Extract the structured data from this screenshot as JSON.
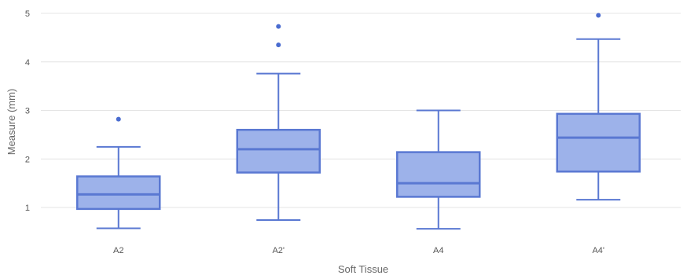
{
  "chart_data": {
    "type": "boxplot",
    "title": "",
    "xlabel": "Soft Tissue",
    "ylabel": "Measure (mm)",
    "ylim": [
      0.5,
      5
    ],
    "yticks": [
      1,
      2,
      3,
      4,
      5
    ],
    "grid": true,
    "legend": "none",
    "colors": {
      "box_fill": "#9db2ea",
      "box_stroke": "#5a78d2",
      "outlier": "#4a6cd0",
      "grid": "#e4e4e4"
    },
    "categories": [
      "A2",
      "A2'",
      "A4",
      "A4'"
    ],
    "boxes": [
      {
        "category": "A2",
        "min": 0.57,
        "q1": 0.97,
        "median": 1.27,
        "q3": 1.64,
        "max": 2.25,
        "outliers": [
          2.82
        ]
      },
      {
        "category": "A2'",
        "min": 0.74,
        "q1": 1.72,
        "median": 2.2,
        "q3": 2.6,
        "max": 3.76,
        "outliers": [
          4.35,
          4.73
        ]
      },
      {
        "category": "A4",
        "min": 0.56,
        "q1": 1.22,
        "median": 1.5,
        "q3": 2.14,
        "max": 3.0,
        "outliers": []
      },
      {
        "category": "A4'",
        "min": 1.16,
        "q1": 1.74,
        "median": 2.44,
        "q3": 2.93,
        "max": 4.47,
        "outliers": [
          4.96
        ]
      }
    ]
  }
}
